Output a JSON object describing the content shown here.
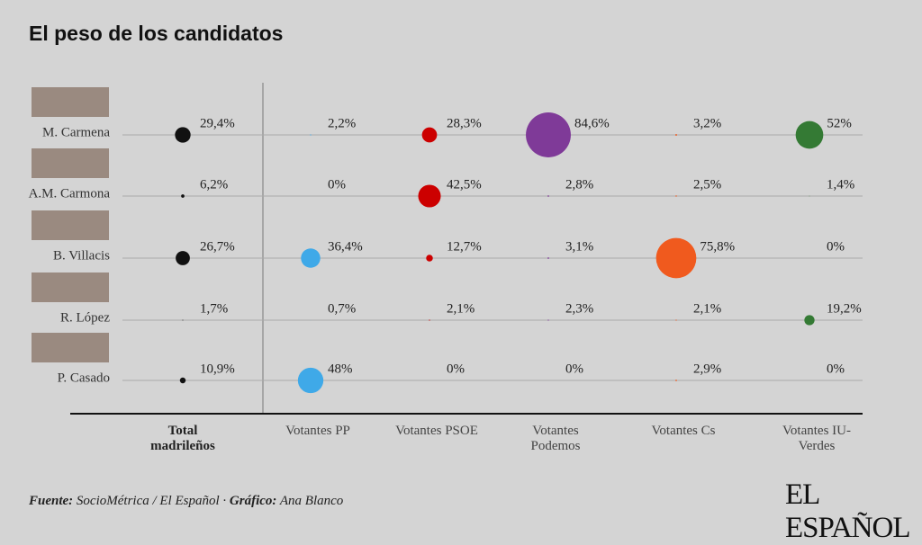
{
  "chart_data": {
    "type": "bubble",
    "title": "El peso de los candidatos",
    "categories": [
      "M. Carmena",
      "A.M. Carmona",
      "B. Villacis",
      "R. López",
      "P. Casado"
    ],
    "series": [
      {
        "name": "Total madrileños",
        "color": "#111111",
        "values": [
          29.4,
          6.2,
          26.7,
          1.7,
          10.9
        ],
        "value_labels": [
          "29,4%",
          "6,2%",
          "26,7%",
          "1,7%",
          "10,9%"
        ]
      },
      {
        "name": "Votantes PP",
        "color": "#3fa9e8",
        "values": [
          2.2,
          0,
          36.4,
          0.7,
          48
        ],
        "value_labels": [
          "2,2%",
          "0%",
          "36,4%",
          "0,7%",
          "48%"
        ]
      },
      {
        "name": "Votantes PSOE",
        "color": "#cc0000",
        "values": [
          28.3,
          42.5,
          12.7,
          2.1,
          0
        ],
        "value_labels": [
          "28,3%",
          "42,5%",
          "12,7%",
          "2,1%",
          "0%"
        ]
      },
      {
        "name": "Votantes Podemos",
        "color": "#7f3a98",
        "values": [
          84.6,
          2.8,
          3.1,
          2.3,
          0
        ],
        "value_labels": [
          "84,6%",
          "2,8%",
          "3,1%",
          "2,3%",
          "0%"
        ]
      },
      {
        "name": "Votantes Cs",
        "color": "#f05a1e",
        "values": [
          3.2,
          2.5,
          75.8,
          2.1,
          2.9
        ],
        "value_labels": [
          "3,2%",
          "2,5%",
          "75,8%",
          "2,1%",
          "2,9%"
        ]
      },
      {
        "name": "Votantes IU-Verdes",
        "color": "#347a34",
        "values": [
          52,
          1.4,
          0,
          19.2,
          0
        ],
        "value_labels": [
          "52%",
          "1,4%",
          "0%",
          "19,2%",
          "0%"
        ]
      }
    ]
  },
  "footer": {
    "source_label": "Fuente:",
    "source": "SocioMétrica / El Español ·",
    "credit_label": "Gráfico:",
    "credit": "Ana Blanco",
    "logo": "EL ESPAÑOL"
  }
}
